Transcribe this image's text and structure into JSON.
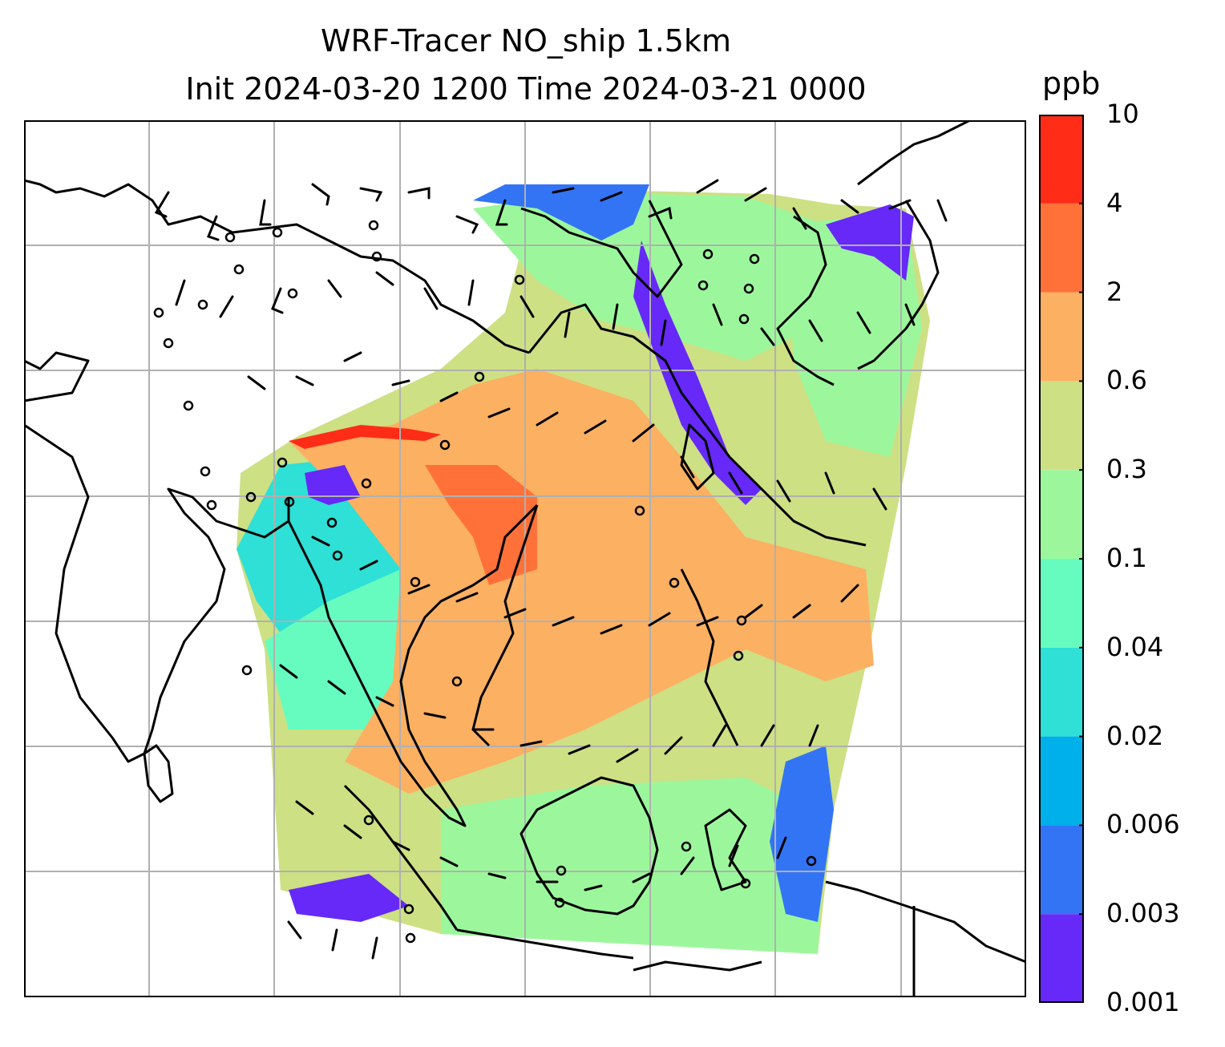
{
  "title": {
    "line1": "WRF-Tracer NO_ship 1.5km",
    "line2": "Init 2024-03-20 1200 Time 2024-03-21 0000"
  },
  "colorbar": {
    "label": "ppb",
    "ticks": [
      "0.001",
      "0.003",
      "0.006",
      "0.02",
      "0.04",
      "0.1",
      "0.3",
      "0.6",
      "2",
      "4",
      "10"
    ],
    "colors": [
      "#6629f7",
      "#3374f5",
      "#00b0eb",
      "#2ee0d6",
      "#66fcc0",
      "#9cf79c",
      "#cde084",
      "#fcb062",
      "#ff7139",
      "#ff2c17"
    ]
  },
  "map": {
    "grid": true,
    "grid_color": "#b0b0b0",
    "coastline_color": "#000000",
    "wind_barbs": true
  }
}
